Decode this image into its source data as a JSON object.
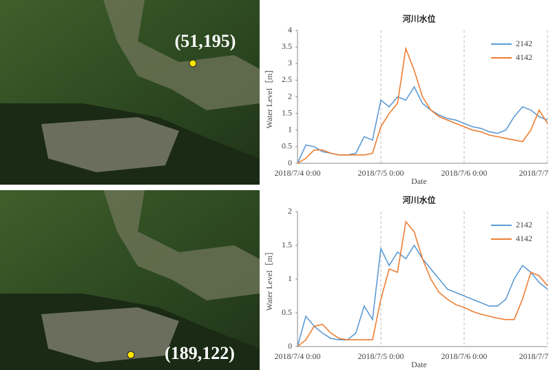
{
  "maps": [
    {
      "label": "(51,195)"
    },
    {
      "label": "(189,122)"
    }
  ],
  "chart_data": [
    {
      "type": "line",
      "title": "河川水位",
      "x_label": "Date",
      "y_label": "Water Level［m］",
      "x": [
        0,
        0.1,
        0.2,
        0.3,
        0.4,
        0.5,
        0.6,
        0.7,
        0.8,
        0.9,
        1.0,
        1.1,
        1.2,
        1.3,
        1.4,
        1.5,
        1.6,
        1.7,
        1.8,
        1.9,
        2.0,
        2.1,
        2.2,
        2.3,
        2.4,
        2.5,
        2.6,
        2.7,
        2.8,
        2.9,
        3.0
      ],
      "series": [
        {
          "name": "2142",
          "color": "#5b9bd5",
          "values": [
            0,
            0.55,
            0.5,
            0.35,
            0.3,
            0.25,
            0.25,
            0.3,
            0.8,
            0.7,
            1.9,
            1.7,
            2.0,
            1.9,
            2.3,
            1.8,
            1.6,
            1.45,
            1.35,
            1.3,
            1.2,
            1.1,
            1.05,
            0.95,
            0.9,
            1.0,
            1.4,
            1.7,
            1.6,
            1.4,
            1.3
          ]
        },
        {
          "name": "4142",
          "color": "#ed7d31",
          "values": [
            0,
            0.15,
            0.4,
            0.4,
            0.3,
            0.25,
            0.25,
            0.25,
            0.25,
            0.3,
            1.1,
            1.5,
            1.8,
            3.45,
            2.8,
            2.0,
            1.6,
            1.4,
            1.3,
            1.2,
            1.1,
            1.0,
            0.95,
            0.85,
            0.8,
            0.75,
            0.7,
            0.65,
            1.0,
            1.6,
            1.2
          ]
        }
      ],
      "xlim": [
        0,
        3
      ],
      "xticks": [
        {
          "value": 0,
          "label": "2018/7/4 0:00"
        },
        {
          "value": 1,
          "label": "2018/7/5 0:00"
        },
        {
          "value": 2,
          "label": "2018/7/6 0:00"
        },
        {
          "value": 3,
          "label": "2018/7/7"
        }
      ],
      "ylim": [
        0,
        4
      ],
      "yticks": [
        0,
        0.5,
        1,
        1.5,
        2,
        2.5,
        3,
        3.5,
        4
      ],
      "grid": "x",
      "legend": "upper right"
    },
    {
      "type": "line",
      "title": "河川水位",
      "x_label": "Date",
      "y_label": "Water Level［m］",
      "x": [
        0,
        0.1,
        0.2,
        0.3,
        0.4,
        0.5,
        0.6,
        0.7,
        0.8,
        0.9,
        1.0,
        1.1,
        1.2,
        1.3,
        1.4,
        1.5,
        1.6,
        1.7,
        1.8,
        1.9,
        2.0,
        2.1,
        2.2,
        2.3,
        2.4,
        2.5,
        2.6,
        2.7,
        2.8,
        2.9,
        3.0
      ],
      "series": [
        {
          "name": "2142",
          "color": "#5b9bd5",
          "values": [
            0,
            0.45,
            0.3,
            0.2,
            0.12,
            0.1,
            0.1,
            0.2,
            0.6,
            0.4,
            1.45,
            1.2,
            1.4,
            1.3,
            1.5,
            1.3,
            1.15,
            1.0,
            0.85,
            0.8,
            0.75,
            0.7,
            0.65,
            0.6,
            0.6,
            0.7,
            1.0,
            1.2,
            1.1,
            0.95,
            0.85
          ]
        },
        {
          "name": "4142",
          "color": "#ed7d31",
          "values": [
            0,
            0.1,
            0.3,
            0.33,
            0.2,
            0.12,
            0.1,
            0.1,
            0.1,
            0.1,
            0.7,
            1.15,
            1.1,
            1.85,
            1.7,
            1.3,
            1.0,
            0.8,
            0.7,
            0.62,
            0.58,
            0.52,
            0.48,
            0.45,
            0.42,
            0.4,
            0.4,
            0.7,
            1.1,
            1.05,
            0.9
          ]
        }
      ],
      "xlim": [
        0,
        3
      ],
      "xticks": [
        {
          "value": 0,
          "label": "2018/7/4 0:00"
        },
        {
          "value": 1,
          "label": "2018/7/5 0:00"
        },
        {
          "value": 2,
          "label": "2018/7/6 0:00"
        },
        {
          "value": 3,
          "label": "2018/7/7"
        }
      ],
      "ylim": [
        0,
        2
      ],
      "yticks": [
        0,
        0.5,
        1,
        1.5,
        2
      ],
      "grid": "x",
      "legend": "upper right"
    }
  ]
}
